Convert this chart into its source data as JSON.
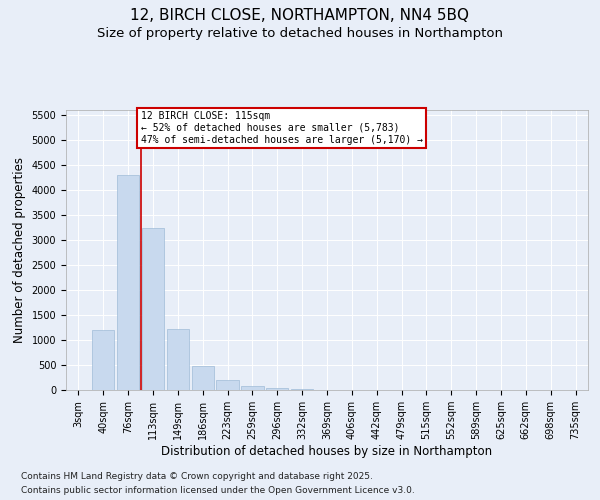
{
  "title_line1": "12, BIRCH CLOSE, NORTHAMPTON, NN4 5BQ",
  "title_line2": "Size of property relative to detached houses in Northampton",
  "xlabel": "Distribution of detached houses by size in Northampton",
  "ylabel": "Number of detached properties",
  "bar_color": "#c8d9ee",
  "bar_edge_color": "#a0bcd8",
  "vline_color": "#cc0000",
  "annotation_title": "12 BIRCH CLOSE: 115sqm",
  "annotation_line2": "← 52% of detached houses are smaller (5,783)",
  "annotation_line3": "47% of semi-detached houses are larger (5,170) →",
  "annotation_box_color": "#cc0000",
  "categories": [
    "3sqm",
    "40sqm",
    "76sqm",
    "113sqm",
    "149sqm",
    "186sqm",
    "223sqm",
    "259sqm",
    "296sqm",
    "332sqm",
    "369sqm",
    "406sqm",
    "442sqm",
    "479sqm",
    "515sqm",
    "552sqm",
    "589sqm",
    "625sqm",
    "662sqm",
    "698sqm",
    "735sqm"
  ],
  "values": [
    0,
    1200,
    4300,
    3250,
    1230,
    480,
    200,
    90,
    40,
    20,
    10,
    5,
    2,
    0,
    0,
    0,
    0,
    0,
    0,
    0,
    0
  ],
  "ylim": [
    0,
    5600
  ],
  "yticks": [
    0,
    500,
    1000,
    1500,
    2000,
    2500,
    3000,
    3500,
    4000,
    4500,
    5000,
    5500
  ],
  "background_color": "#e8eef8",
  "plot_bg_color": "#e8eef8",
  "footer_line1": "Contains HM Land Registry data © Crown copyright and database right 2025.",
  "footer_line2": "Contains public sector information licensed under the Open Government Licence v3.0.",
  "title_fontsize": 11,
  "subtitle_fontsize": 9.5,
  "tick_fontsize": 7,
  "label_fontsize": 8.5,
  "footer_fontsize": 6.5,
  "vline_x_index": 3
}
